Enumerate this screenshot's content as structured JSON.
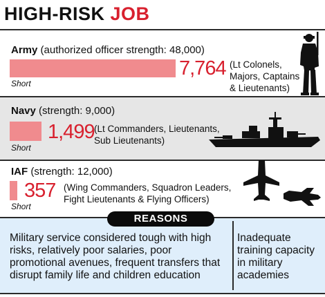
{
  "title": {
    "prefix": "HIGH-RISK ",
    "accent": "JOB"
  },
  "colors": {
    "accent": "#d8202e",
    "bar": "#f08b8e",
    "band": "#e6e6e6",
    "reasons_bg": "#dfeefb"
  },
  "chart_data": {
    "type": "bar",
    "orientation": "horizontal",
    "categories": [
      "Army",
      "Navy",
      "IAF"
    ],
    "series": [
      {
        "name": "Short",
        "values": [
          7764,
          1499,
          357
        ]
      }
    ],
    "value_labels": [
      "7,764",
      "1,499",
      "357"
    ],
    "strength_values": [
      48000,
      9000,
      12000
    ]
  },
  "services": [
    {
      "name": "Army",
      "strength_text": " (authorized officer strength: 48,000)",
      "value_text": "7,764",
      "ranks": [
        "(Lt Colonels,",
        "Majors, Captains",
        "& Lieutenants)"
      ],
      "short_label": "Short",
      "icon": "soldier-icon"
    },
    {
      "name": "Navy",
      "strength_text": " (strength: 9,000)",
      "value_text": "1,499",
      "ranks": [
        "(Lt Commanders, Lieutenants,",
        "Sub Lieutenants)"
      ],
      "short_label": "Short",
      "icon": "warship-icon"
    },
    {
      "name": "IAF",
      "strength_text": " (strength: 12,000)",
      "value_text": "357",
      "ranks": [
        "(Wing Commanders, Squadron Leaders,",
        "Fight Lieutenants & Flying Officers)"
      ],
      "short_label": "Short",
      "icon": "fighter-jets-icon"
    }
  ],
  "reasons": {
    "label": "REASONS",
    "main": "Military service considered tough with high risks, relatively poor salaries, poor promotional avenues, frequent transfers that disrupt family life and children education",
    "side": "Inadequate training capacity in military academies"
  }
}
